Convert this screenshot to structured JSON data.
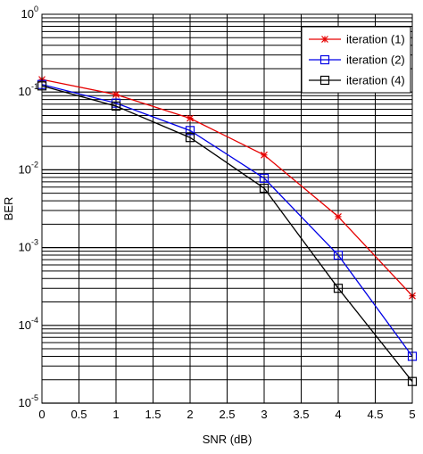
{
  "chart_data": {
    "type": "line",
    "xlabel": "SNR (dB)",
    "ylabel": "BER",
    "xlim": [
      0,
      5
    ],
    "ylim": [
      1e-05,
      1
    ],
    "yscale": "log",
    "grid": true,
    "legend_position": "top-right",
    "x_ticks": [
      "0",
      "0.5",
      "1",
      "1.5",
      "2",
      "2.5",
      "3",
      "3.5",
      "4",
      "4.5",
      "5"
    ],
    "y_ticks": [
      {
        "base": "10",
        "exp": "0"
      },
      {
        "base": "10",
        "exp": "-1"
      },
      {
        "base": "10",
        "exp": "-2"
      },
      {
        "base": "10",
        "exp": "-3"
      },
      {
        "base": "10",
        "exp": "-4"
      },
      {
        "base": "10",
        "exp": "-5"
      }
    ],
    "series": [
      {
        "name": "iteration (1)",
        "color": "#e60000",
        "marker": "star",
        "x": [
          0,
          1,
          2,
          3,
          4,
          5
        ],
        "y": [
          0.145,
          0.093,
          0.046,
          0.0155,
          0.0025,
          0.00024
        ]
      },
      {
        "name": "iteration (2)",
        "color": "#0000e6",
        "marker": "square",
        "x": [
          0,
          1,
          2,
          3,
          4,
          5
        ],
        "y": [
          0.125,
          0.072,
          0.032,
          0.0078,
          0.0008,
          4e-05
        ]
      },
      {
        "name": "iteration (4)",
        "color": "#000000",
        "marker": "square",
        "x": [
          0,
          1,
          2,
          3,
          4,
          5
        ],
        "y": [
          0.12,
          0.066,
          0.026,
          0.0058,
          0.0003,
          1.9e-05
        ]
      }
    ]
  }
}
